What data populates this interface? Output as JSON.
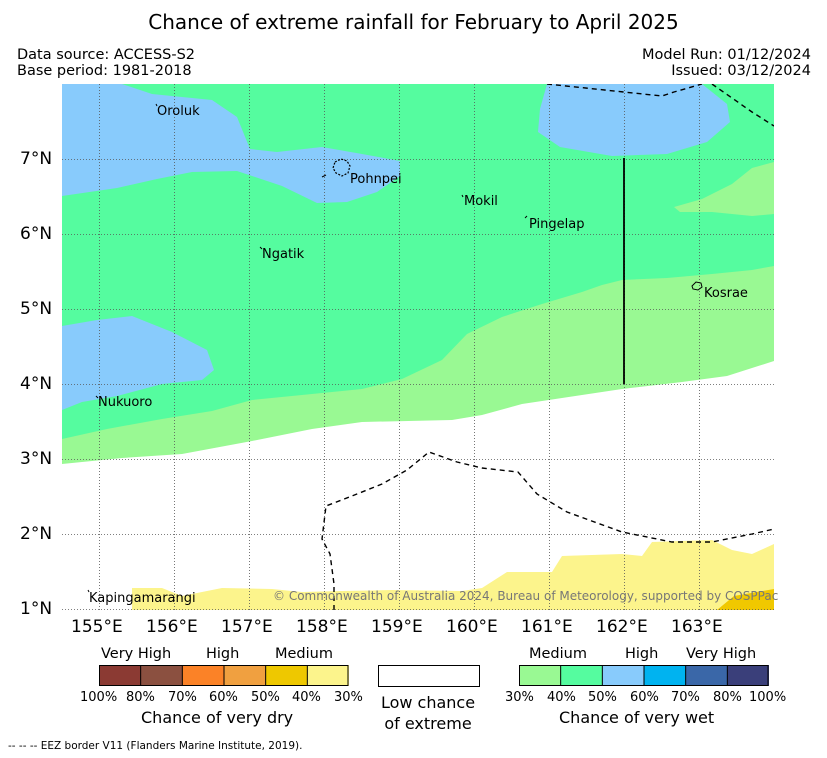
{
  "header": {
    "title": "Chance of extreme rainfall for February to April 2025",
    "data_source": "Data source: ACCESS-S2",
    "base_period": "Base period: 1981-2018",
    "model_run": "Model Run: 01/12/2024",
    "issued": "Issued: 03/12/2024"
  },
  "map": {
    "lat_labels": [
      "7°N",
      "6°N",
      "5°N",
      "4°N",
      "3°N",
      "2°N",
      "1°N"
    ],
    "lon_labels": [
      "155°E",
      "156°E",
      "157°E",
      "158°E",
      "159°E",
      "160°E",
      "161°E",
      "162°E",
      "163°E"
    ],
    "places": {
      "oroluk": "Oroluk",
      "pohnpei": "Pohnpei",
      "mokil": "Mokil",
      "pingelap": "Pingelap",
      "ngatik": "Ngatik",
      "kosrae": "Kosrae",
      "nukuoro": "Nukuoro",
      "kapingamarangi": "Kapingamarangi"
    },
    "copyright": "© Commonwealth of Australia 2024, Bureau of Meteorology, supported by COSPPac",
    "colors": {
      "wet_medium": "#99f993",
      "wet_40_50": "#55fc9f",
      "wet_high": "#88cbfc",
      "dry_medium": "#fcf48c",
      "dry_medium_dark": "#f0c800"
    }
  },
  "legend_dry": {
    "group_labels": [
      "Very High",
      "High",
      "Medium"
    ],
    "tick_labels": [
      "100%",
      "80%",
      "70%",
      "60%",
      "50%",
      "40%",
      "30%"
    ],
    "name": "Chance of very dry",
    "colors": [
      "#8b3a33",
      "#8b5040",
      "#fb8227",
      "#f0a040",
      "#eec800",
      "#fcf48c"
    ]
  },
  "legend_low": {
    "line1": "Low chance",
    "line2": "of extreme"
  },
  "legend_wet": {
    "group_labels": [
      "Medium",
      "High",
      "Very High"
    ],
    "tick_labels": [
      "30%",
      "40%",
      "50%",
      "60%",
      "70%",
      "80%",
      "100%"
    ],
    "name": "Chance of very wet",
    "colors": [
      "#99f993",
      "#55fc9f",
      "#88cbfc",
      "#00b3f0",
      "#3a67a8",
      "#3a3f7a"
    ]
  },
  "footer": {
    "eez_note": "--  --  -- EEZ border V11 (Flanders Marine Institute, 2019)."
  }
}
